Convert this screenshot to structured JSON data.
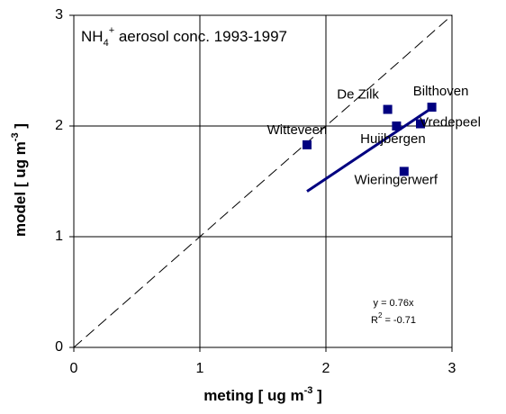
{
  "chart_data": {
    "type": "scatter",
    "title": [
      "NH",
      "4",
      "+",
      " aerosol conc. 1993-1997"
    ],
    "xlabel": [
      "meting  [ ug m",
      "-3",
      " ]"
    ],
    "ylabel": [
      "model  [ ug m",
      "-3",
      " ]"
    ],
    "annotations": {
      "equation": "y = 0.76x",
      "r2": [
        "R",
        "2",
        " = -0.71"
      ]
    },
    "xlim": [
      0,
      3
    ],
    "ylim": [
      0,
      3
    ],
    "xticks": [
      0,
      1,
      2,
      3
    ],
    "yticks": [
      0,
      1,
      2,
      3
    ],
    "grid": true,
    "series": [
      {
        "color": "#000080",
        "labels": [
          "Witteveen",
          "De Zilk",
          "Bilthoven",
          "Huijbergen",
          "Vredepeel",
          "Wieringerwerf"
        ],
        "x": [
          1.85,
          2.49,
          2.84,
          2.56,
          2.75,
          2.62
        ],
        "values": [
          1.83,
          2.15,
          2.17,
          2.0,
          2.02,
          1.59
        ]
      }
    ],
    "trendline": {
      "color": "#000080",
      "x": [
        1.85,
        2.85
      ],
      "values": [
        1.41,
        2.17
      ]
    }
  }
}
